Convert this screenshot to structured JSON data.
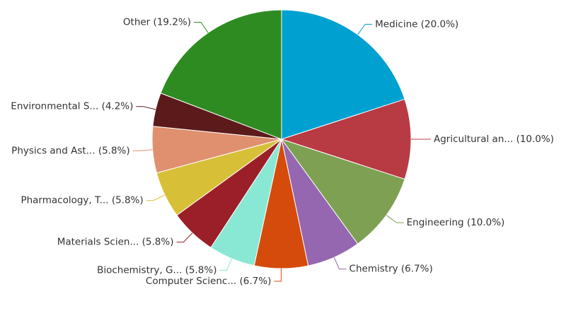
{
  "chart_data": {
    "type": "pie",
    "categories": [
      "Medicine",
      "Agricultural an...",
      "Engineering",
      "Chemistry",
      "Computer Scienc...",
      "Biochemistry, G...",
      "Materials Scien...",
      "Pharmacology, T...",
      "Physics and Ast...",
      "Environmental S...",
      "Other"
    ],
    "values": [
      20.0,
      10.0,
      10.0,
      6.7,
      6.7,
      5.8,
      5.8,
      5.8,
      5.8,
      4.2,
      19.2
    ],
    "value_labels": [
      "(20.0%)",
      "(10.0%)",
      "(10.0%)",
      "(6.7%)",
      "(6.7%)",
      "(5.8%)",
      "(5.8%)",
      "(5.8%)",
      "(5.8%)",
      "(4.2%)",
      "(19.2%)"
    ],
    "colors": [
      "#00a0d0",
      "#b83a42",
      "#7da052",
      "#9467b0",
      "#d54b0c",
      "#88e8d4",
      "#9b1f28",
      "#d8bf38",
      "#e0906e",
      "#5c1a1a",
      "#2e8b22"
    ]
  }
}
